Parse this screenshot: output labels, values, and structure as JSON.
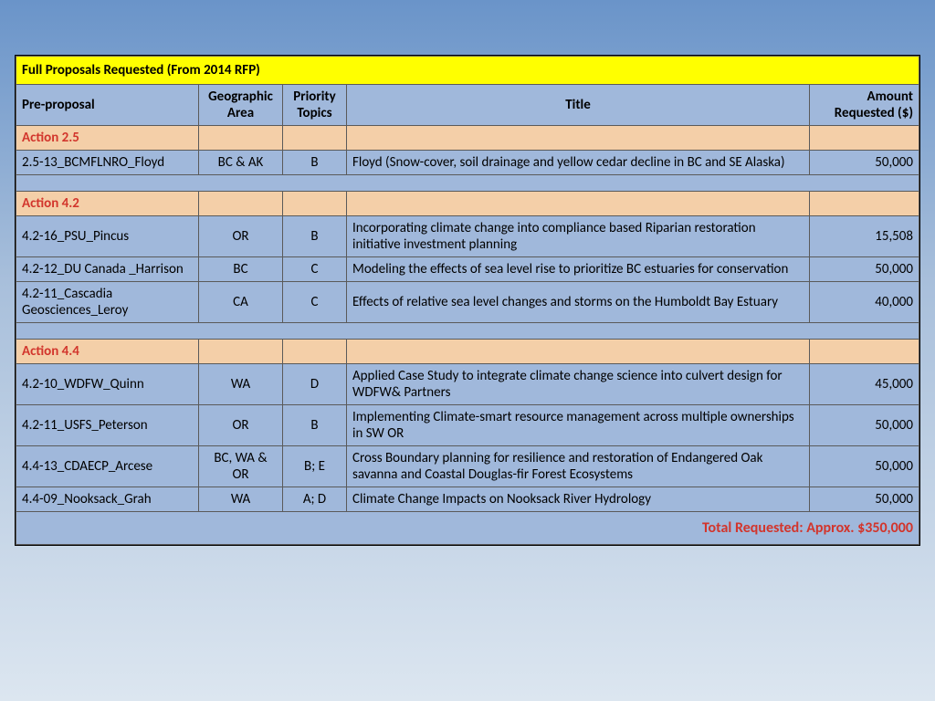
{
  "table": {
    "title": "Full Proposals Requested (From 2014 RFP)",
    "columns": {
      "pre": "Pre-proposal",
      "geo": "Geographic Area",
      "pri": "Priority Topics",
      "title": "Title",
      "amt": "Amount Requested ($)"
    },
    "sections": [
      {
        "action": "Action 2.5",
        "rows": [
          {
            "pre": "2.5-13_BCMFLNRO_Floyd",
            "geo": "BC & AK",
            "pri": "B",
            "title": "Floyd (Snow-cover, soil drainage and yellow cedar decline in BC and SE Alaska)",
            "amt": "50,000"
          }
        ]
      },
      {
        "action": "Action 4.2",
        "rows": [
          {
            "pre": "4.2-16_PSU_Pincus",
            "geo": "OR",
            "pri": "B",
            "title": "Incorporating climate change into compliance based Riparian restoration initiative investment planning",
            "amt": "15,508"
          },
          {
            "pre": "4.2-12_DU Canada _Harrison",
            "geo": "BC",
            "pri": "C",
            "title": "Modeling the effects of sea level rise to prioritize BC estuaries for conservation",
            "amt": "50,000"
          },
          {
            "pre": "4.2-11_Cascadia Geosciences_Leroy",
            "geo": "CA",
            "pri": "C",
            "title": "Effects of relative sea level changes and storms on the Humboldt Bay Estuary",
            "amt": "40,000"
          }
        ]
      },
      {
        "action": "Action 4.4",
        "rows": [
          {
            "pre": "4.2-10_WDFW_Quinn",
            "geo": "WA",
            "pri": "D",
            "title": "Applied Case Study to integrate climate change science into culvert design for WDFW& Partners",
            "amt": "45,000"
          },
          {
            "pre": "4.2-11_USFS_Peterson",
            "geo": "OR",
            "pri": "B",
            "title": "Implementing Climate-smart resource management across multiple ownerships in SW OR",
            "amt": "50,000"
          },
          {
            "pre": "4.4-13_CDAECP_Arcese",
            "geo": "BC, WA & OR",
            "pri": "B; E",
            "title": "Cross Boundary planning for resilience and restoration of Endangered Oak savanna and Coastal Douglas-fir Forest Ecosystems",
            "amt": "50,000"
          },
          {
            "pre": "4.4-09_Nooksack_Grah",
            "geo": "WA",
            "pri": "A; D",
            "title": "Climate Change Impacts on Nooksack River Hydrology",
            "amt": "50,000"
          }
        ]
      }
    ],
    "total": "Total Requested:  Approx. $350,000"
  },
  "colors": {
    "title_bg": "#ffff00",
    "header_bg": "#a0b8db",
    "action_bg": "#f4cfa8",
    "action_text": "#d2352c",
    "data_bg": "#a0b8db",
    "border": "#5a5a5a"
  }
}
